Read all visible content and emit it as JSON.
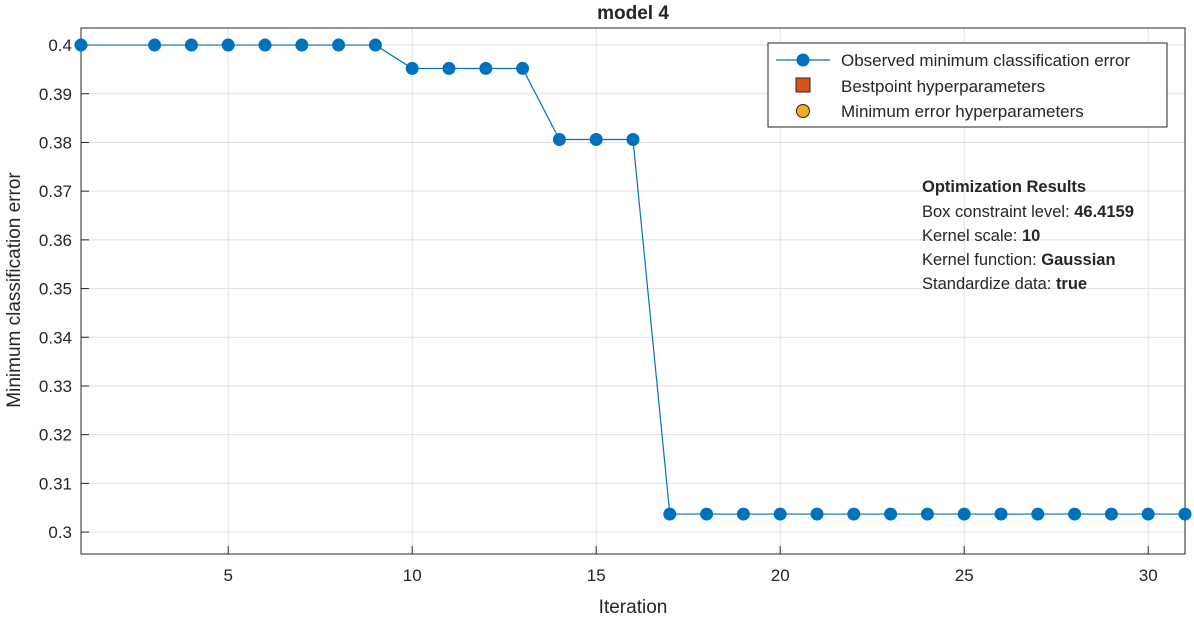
{
  "chart_data": {
    "type": "line",
    "title": "model 4",
    "xlabel": "Iteration",
    "ylabel": "Minimum classification error",
    "xlim": [
      1,
      31
    ],
    "ylim": [
      0.2955,
      0.4035
    ],
    "grid": true,
    "xticks": [
      5,
      10,
      15,
      20,
      25,
      30
    ],
    "yticks": [
      0.3,
      0.31,
      0.32,
      0.33,
      0.34,
      0.35,
      0.36,
      0.37,
      0.38,
      0.39,
      0.4
    ],
    "ytick_labels": [
      "0.3",
      "0.31",
      "0.32",
      "0.33",
      "0.34",
      "0.35",
      "0.36",
      "0.37",
      "0.38",
      "0.39",
      "0.4"
    ],
    "series": [
      {
        "name": "Observed minimum classification error",
        "color": "#0072BD",
        "x": [
          1,
          2,
          3,
          4,
          5,
          6,
          7,
          8,
          9,
          10,
          11,
          12,
          13,
          14,
          15,
          16,
          17,
          18,
          19,
          20,
          21,
          22,
          23,
          24,
          25,
          26,
          27,
          28,
          29,
          30,
          31
        ],
        "y": [
          0.4,
          0.4,
          0.4,
          0.4,
          0.4,
          0.4,
          0.4,
          0.4,
          0.4,
          0.3952,
          0.3952,
          0.3952,
          0.3952,
          0.3806,
          0.3806,
          0.3806,
          0.3037,
          0.3037,
          0.3037,
          0.3037,
          0.3037,
          0.3037,
          0.3037,
          0.3037,
          0.3037,
          0.3037,
          0.3037,
          0.3037,
          0.3037,
          0.3037,
          0.3037
        ],
        "markers_at": [
          1,
          3,
          4,
          5,
          6,
          7,
          8,
          9,
          10,
          11,
          12,
          13,
          14,
          15,
          16,
          17,
          18,
          19,
          20,
          21,
          22,
          23,
          24,
          25,
          26,
          27,
          28,
          29,
          30,
          31
        ]
      }
    ],
    "legend": {
      "placement": "top-right",
      "entries": [
        {
          "label": "Observed minimum classification error",
          "marker": "line-circle",
          "color": "#0072BD"
        },
        {
          "label": "Bestpoint hyperparameters",
          "marker": "square",
          "color": "#D95319"
        },
        {
          "label": "Minimum error hyperparameters",
          "marker": "circle",
          "color": "#EDB120"
        }
      ]
    },
    "annotation": {
      "heading": "Optimization Results",
      "lines": [
        {
          "label": "Box constraint level: ",
          "value": "46.4159"
        },
        {
          "label": "Kernel scale: ",
          "value": "10"
        },
        {
          "label": "Kernel function: ",
          "value": "Gaussian"
        },
        {
          "label": "Standardize data: ",
          "value": "true"
        }
      ]
    }
  }
}
